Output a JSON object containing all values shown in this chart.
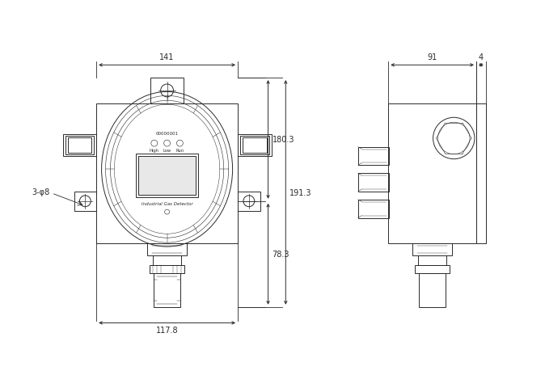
{
  "bg_color": "#ffffff",
  "line_color": "#2a2a2a",
  "line_width": 0.7,
  "dim_color": "#2a2a2a",
  "dim_fontsize": 7.0,
  "label_fontsize": 6.5,
  "fig_width": 6.74,
  "fig_height": 4.6,
  "dim_141": "141",
  "dim_117_8": "117.8",
  "dim_180_3": "180.3",
  "dim_191_3": "191.3",
  "dim_78_3": "78.3",
  "dim_91": "91",
  "dim_4": "4",
  "label_3phi8": "3-φ8",
  "text_industrial": "Industrial Gas Detector",
  "text_serial": "00000001",
  "led_labels": [
    "High",
    "Low",
    "Run"
  ]
}
